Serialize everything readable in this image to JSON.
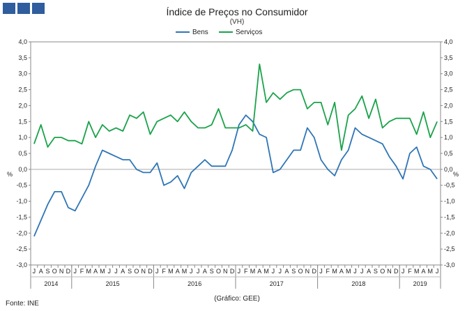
{
  "logo": {
    "icon": "ine-logo-squares",
    "color": "#2f5d9e"
  },
  "source": "Fonte: INE",
  "credit": "(Gráfico: GEE)",
  "chart_data": {
    "type": "line",
    "title": "Índice de Preços no Consumidor",
    "subtitle": "(VH)",
    "ylabel": "%",
    "ylim": [
      -3.0,
      4.0
    ],
    "yticks": [
      "4,0",
      "3,5",
      "3,0",
      "2,5",
      "2,0",
      "1,5",
      "1,0",
      "0,5",
      "0,0",
      "-0,5",
      "-1,0",
      "-1,5",
      "-2,0",
      "-2,5",
      "-3,0"
    ],
    "month_labels": [
      "J",
      "A",
      "S",
      "O",
      "N",
      "D",
      "J",
      "F",
      "M",
      "A",
      "M",
      "J",
      "J",
      "A",
      "S",
      "O",
      "N",
      "D",
      "J",
      "F",
      "M",
      "A",
      "M",
      "J",
      "J",
      "A",
      "S",
      "O",
      "N",
      "D",
      "J",
      "F",
      "M",
      "A",
      "M",
      "J",
      "J",
      "A",
      "S",
      "O",
      "N",
      "D",
      "J",
      "F",
      "M",
      "A",
      "M",
      "J",
      "J",
      "A",
      "S",
      "O",
      "N",
      "D",
      "J",
      "F",
      "M",
      "A",
      "M",
      "J"
    ],
    "year_labels": [
      {
        "label": "2014",
        "start": 0,
        "end": 5
      },
      {
        "label": "2015",
        "start": 6,
        "end": 17
      },
      {
        "label": "2016",
        "start": 18,
        "end": 29
      },
      {
        "label": "2017",
        "start": 30,
        "end": 41
      },
      {
        "label": "2018",
        "start": 42,
        "end": 53
      },
      {
        "label": "2019",
        "start": 54,
        "end": 59
      }
    ],
    "series": [
      {
        "name": "Bens",
        "color": "#2e75b6",
        "values": [
          -2.1,
          -1.6,
          -1.1,
          -0.7,
          -0.7,
          -1.2,
          -1.3,
          -0.9,
          -0.5,
          0.1,
          0.6,
          0.5,
          0.4,
          0.3,
          0.3,
          0.0,
          -0.1,
          -0.1,
          0.2,
          -0.5,
          -0.4,
          -0.2,
          -0.6,
          -0.1,
          0.1,
          0.3,
          0.1,
          0.1,
          0.1,
          0.6,
          1.4,
          1.7,
          1.5,
          1.1,
          1.0,
          -0.1,
          0.0,
          0.3,
          0.6,
          0.6,
          1.3,
          1.0,
          0.3,
          0.0,
          -0.2,
          0.3,
          0.6,
          1.3,
          1.1,
          1.0,
          0.9,
          0.8,
          0.4,
          0.1,
          -0.3,
          0.5,
          0.7,
          0.1,
          0.0,
          -0.3
        ]
      },
      {
        "name": "Serviços",
        "color": "#1aa24a",
        "values": [
          0.8,
          1.4,
          0.7,
          1.0,
          1.0,
          0.9,
          0.9,
          0.8,
          1.5,
          1.0,
          1.4,
          1.2,
          1.3,
          1.2,
          1.7,
          1.6,
          1.8,
          1.1,
          1.5,
          1.6,
          1.7,
          1.5,
          1.8,
          1.5,
          1.3,
          1.3,
          1.4,
          1.9,
          1.3,
          1.3,
          1.3,
          1.4,
          1.2,
          3.3,
          2.1,
          2.4,
          2.2,
          2.4,
          2.5,
          2.5,
          1.9,
          2.1,
          2.1,
          1.4,
          2.1,
          0.6,
          1.7,
          1.9,
          2.3,
          1.6,
          2.2,
          1.3,
          1.5,
          1.6,
          1.6,
          1.6,
          1.1,
          1.8,
          1.0,
          1.5
        ]
      }
    ]
  }
}
